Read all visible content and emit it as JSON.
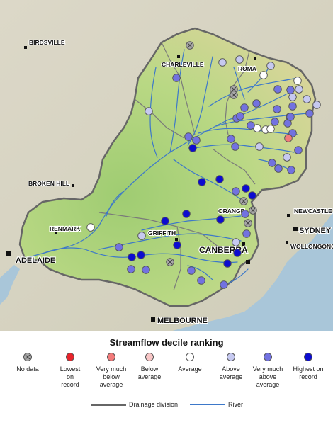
{
  "map": {
    "places": [
      {
        "label": "BIRDSVILLE",
        "type": "town"
      },
      {
        "label": "CHARLEVILLE",
        "type": "town"
      },
      {
        "label": "ROMA",
        "type": "town"
      },
      {
        "label": "BROKEN HILL",
        "type": "town"
      },
      {
        "label": "RENMARK",
        "type": "town"
      },
      {
        "label": "GRIFFITH",
        "type": "town"
      },
      {
        "label": "ORANGE",
        "type": "town"
      },
      {
        "label": "CANBERRA",
        "type": "capital"
      },
      {
        "label": "NEWCASTLE",
        "type": "town"
      },
      {
        "label": "SYDNEY",
        "type": "capital"
      },
      {
        "label": "WOLLONGONG",
        "type": "town"
      },
      {
        "label": "ADELAIDE",
        "type": "capital"
      },
      {
        "label": "MELBOURNE",
        "type": "capital"
      }
    ],
    "colors": {
      "sea": "#a9c6d9",
      "outside_land": "#d6d3c6",
      "basin_lowland": "#a8cf7c",
      "basin_mid": "#c9d98c",
      "basin_upland": "#e4d6a0",
      "river": "#3d78c9",
      "division_border": "#666666"
    }
  },
  "legend": {
    "title": "Streamflow decile ranking",
    "categories": [
      {
        "label": "No data",
        "color": "#a8a8a8",
        "crossed": true
      },
      {
        "label": "Lowest on record",
        "color": "#e8242b",
        "crossed": false
      },
      {
        "label": "Very much below average",
        "color": "#f27a7a",
        "crossed": false
      },
      {
        "label": "Below average",
        "color": "#f8c6c6",
        "crossed": false
      },
      {
        "label": "Average",
        "color": "#ffffff",
        "crossed": false
      },
      {
        "label": "Above average",
        "color": "#c6c9f0",
        "crossed": false
      },
      {
        "label": "Very much above average",
        "color": "#7272e0",
        "crossed": false
      },
      {
        "label": "Highest on record",
        "color": "#0c0cd0",
        "crossed": false
      }
    ],
    "lines": [
      {
        "label": "Drainage division",
        "color": "#666666"
      },
      {
        "label": "River",
        "color": "#3d78c9"
      }
    ]
  },
  "stations_count": {
    "no_data": 6,
    "lowest_on_record": 0,
    "very_much_below_average": 1,
    "below_average": 0,
    "average": 9,
    "above_average": 16,
    "very_much_above_average": 36,
    "highest_on_record": 20
  }
}
